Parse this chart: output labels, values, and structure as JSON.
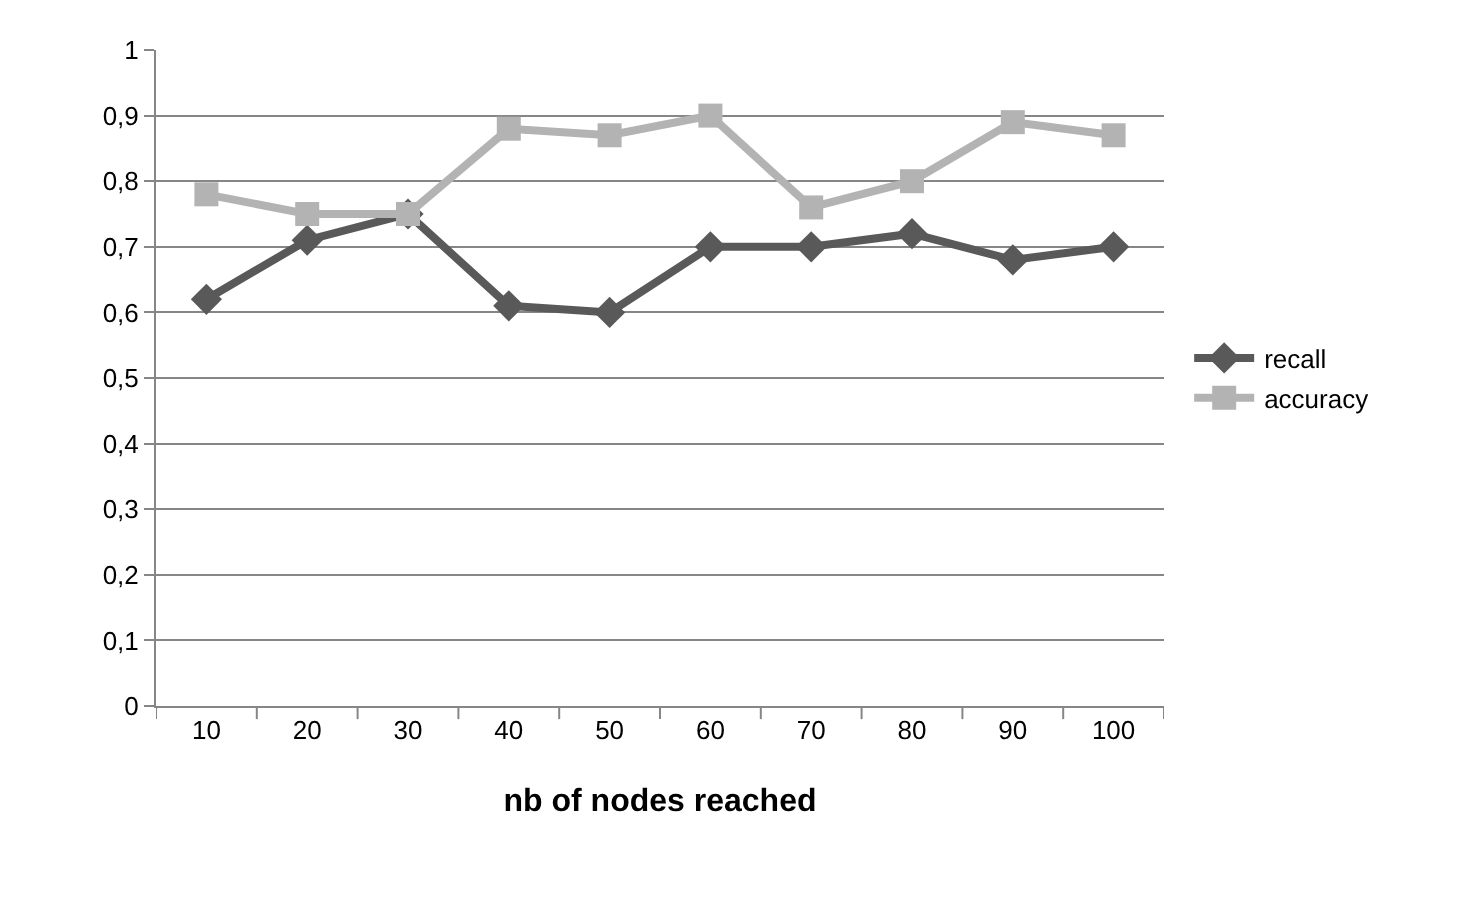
{
  "chart_data": {
    "type": "line",
    "xlabel": "nb of nodes reached",
    "categories": [
      "10",
      "20",
      "30",
      "40",
      "50",
      "60",
      "70",
      "80",
      "90",
      "100"
    ],
    "series": [
      {
        "name": "recall",
        "color": "#595959",
        "marker": "diamond",
        "values": [
          0.62,
          0.71,
          0.75,
          0.61,
          0.6,
          0.7,
          0.7,
          0.72,
          0.68,
          0.7
        ]
      },
      {
        "name": "accuracy",
        "color": "#b3b3b3",
        "marker": "square",
        "values": [
          0.78,
          0.75,
          0.75,
          0.88,
          0.87,
          0.9,
          0.76,
          0.8,
          0.89,
          0.87
        ]
      }
    ],
    "ylim": [
      0,
      1
    ],
    "yticks": [
      0,
      {
        "value": 0.1,
        "label": "0,1"
      },
      {
        "value": 0.2,
        "label": "0,2"
      },
      {
        "value": 0.3,
        "label": "0,3"
      },
      {
        "value": 0.4,
        "label": "0,4"
      },
      {
        "value": 0.5,
        "label": "0,5"
      },
      {
        "value": 0.6,
        "label": "0,6"
      },
      {
        "value": 0.7,
        "label": "0,7"
      },
      {
        "value": 0.8,
        "label": "0,8"
      },
      {
        "value": 0.9,
        "label": "0,9"
      },
      1
    ],
    "grid": "y",
    "legend": "right",
    "line_style": "solid"
  }
}
